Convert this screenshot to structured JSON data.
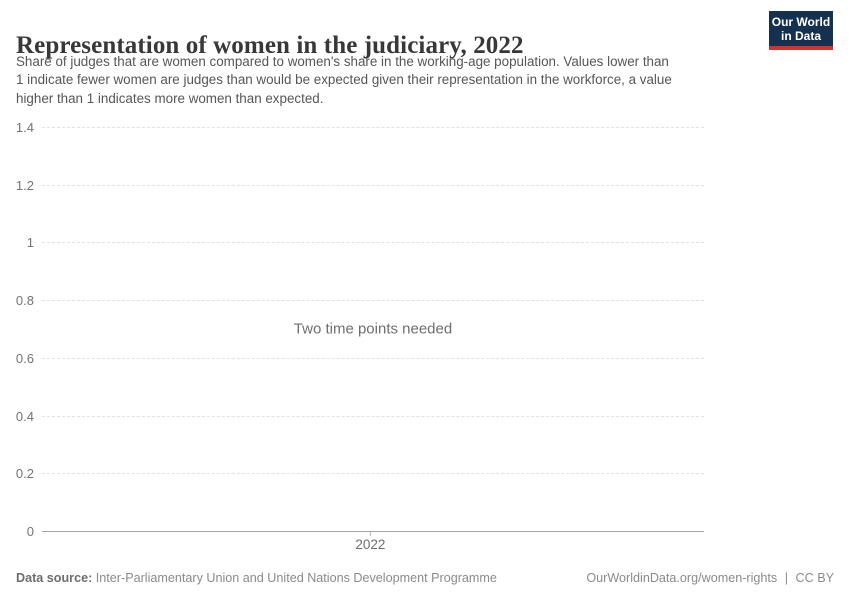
{
  "header": {
    "title": "Representation of women in the judiciary, 2022",
    "subtitle_lines": [
      "Share of judges that are women compared to women's share in the working-age population. Values lower than",
      "1 indicate fewer women are judges than would be expected given their representation in the workforce, a value",
      "higher than 1 indicates more women than expected."
    ],
    "logo": {
      "line1": "Our World",
      "line2": "in Data",
      "bg_color": "#16304f",
      "accent_color": "#d0342c"
    }
  },
  "chart_data": {
    "type": "line",
    "title": "Representation of women in the judiciary, 2022",
    "empty_state_message": "Two time points needed",
    "series": [],
    "x_tick_labels": [
      "2022"
    ],
    "y_ticks": [
      {
        "value": 1.4,
        "label": "1.4"
      },
      {
        "value": 1.2,
        "label": "1.2"
      },
      {
        "value": 1,
        "label": "1"
      },
      {
        "value": 0.8,
        "label": "0.8"
      },
      {
        "value": 0.6,
        "label": "0.6"
      },
      {
        "value": 0.4,
        "label": "0.4"
      },
      {
        "value": 0.2,
        "label": "0.2"
      },
      {
        "value": 0,
        "label": "0"
      }
    ],
    "ylim": [
      0,
      1.4
    ],
    "grid": "horizontal dashed",
    "legend": "none",
    "colors": {
      "gridline": "#e1e1e1",
      "axis_line": "#a5a5a5",
      "tick_label": "#737373"
    }
  },
  "footer": {
    "data_source_label": "Data source:",
    "data_source_value": "Inter-Parliamentary Union and United Nations Development Programme",
    "attribution_url": "OurWorldinData.org/women-rights",
    "separator": "|",
    "license": "CC BY"
  }
}
